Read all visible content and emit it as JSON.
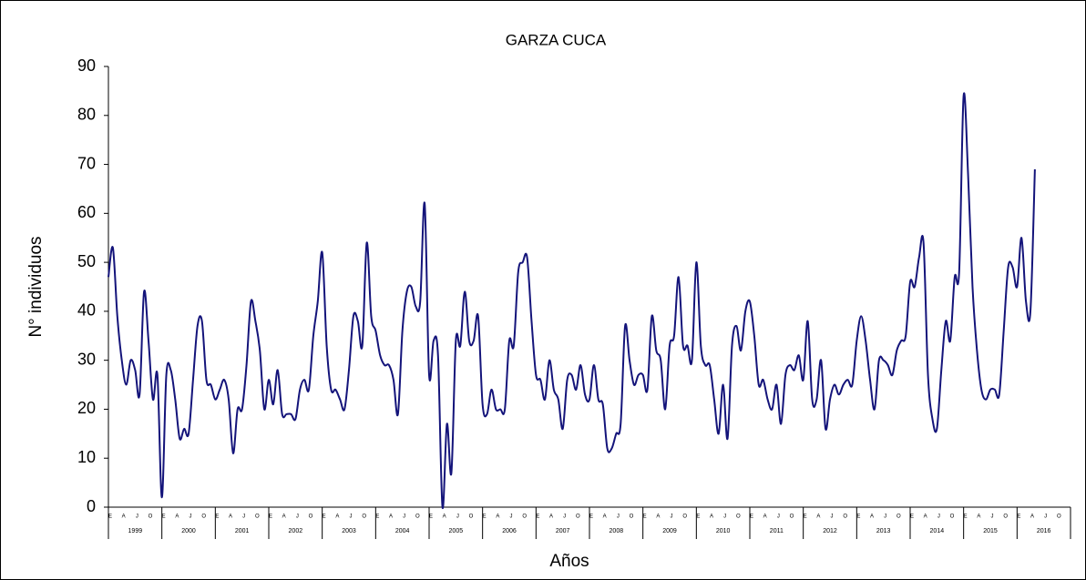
{
  "chart_data": {
    "type": "line",
    "title": "GARZA CUCA",
    "y_label": "N° individuos",
    "x_label": "Años",
    "categories": [
      "E",
      null,
      null,
      "A",
      null,
      null,
      "J",
      null,
      null,
      "O",
      null,
      null,
      "E",
      null,
      null,
      "A",
      null,
      null,
      "J",
      null,
      null,
      "O",
      null,
      null,
      "E",
      null,
      null,
      "A",
      null,
      null,
      "J",
      null,
      null,
      "O",
      null,
      null,
      "E",
      null,
      null,
      "A",
      null,
      null,
      "J",
      null,
      null,
      "O",
      null,
      null,
      "E",
      null,
      null,
      "A",
      null,
      null,
      "J",
      null,
      null,
      "O",
      null,
      null,
      "E",
      null,
      null,
      "A",
      null,
      null,
      "J",
      null,
      null,
      "O",
      null,
      null,
      "E",
      null,
      null,
      "A",
      null,
      null,
      "J",
      null,
      null,
      "O",
      null,
      null,
      "E",
      null,
      null,
      "A",
      null,
      null,
      "J",
      null,
      null,
      "O",
      null,
      null,
      "E",
      null,
      null,
      "A",
      null,
      null,
      "J",
      null,
      null,
      "O",
      null,
      null,
      "E",
      null,
      null,
      "A",
      null,
      null,
      "J",
      null,
      null,
      "O",
      null,
      null,
      "E",
      null,
      null,
      "A",
      null,
      null,
      "J",
      null,
      null,
      "O",
      null,
      null,
      "E",
      null,
      null,
      "A",
      null,
      null,
      "J",
      null,
      null,
      "O",
      null,
      null,
      "E",
      null,
      null,
      "A",
      null,
      null,
      "J",
      null,
      null,
      "O",
      null,
      null,
      "E",
      null,
      null,
      "A",
      null,
      null,
      "J",
      null,
      null,
      "O",
      null,
      null,
      "E",
      null,
      null,
      "A",
      null,
      null,
      "J",
      null,
      null,
      "O",
      null,
      null,
      "E",
      null,
      null,
      "A",
      null,
      null,
      "J",
      null,
      null,
      "O",
      null,
      null,
      "E",
      null,
      null,
      "A",
      null,
      null,
      "J",
      null,
      null,
      "O",
      null,
      null,
      "E",
      null,
      null,
      "A",
      null,
      null,
      "J",
      null,
      null,
      "O",
      null,
      null
    ],
    "x_groups": [
      "1999",
      "2000",
      "2001",
      "2002",
      "2003",
      "2004",
      "2005",
      "2006",
      "2007",
      "2008",
      "2009",
      "2010",
      "2011",
      "2012",
      "2013",
      "2014",
      "2015",
      "2016"
    ],
    "series": [
      {
        "name": "GARZA CUCA",
        "color": "#14147a",
        "values": [
          47,
          53,
          39,
          30,
          25,
          30,
          28,
          23,
          44,
          34,
          22,
          27,
          2,
          27,
          28,
          22,
          14,
          16,
          15,
          26,
          37,
          38,
          26,
          25,
          22,
          24,
          26,
          22,
          11,
          20,
          20,
          29,
          42,
          38,
          32,
          20,
          26,
          21,
          28,
          19,
          19,
          19,
          18,
          24,
          26,
          24,
          35,
          42,
          52,
          33,
          24,
          24,
          22,
          20,
          28,
          39,
          38,
          33,
          54,
          39,
          36,
          31,
          29,
          29,
          26,
          19,
          36,
          44,
          45,
          41,
          42,
          62,
          27,
          34,
          31,
          0,
          17,
          7,
          34,
          33,
          44,
          34,
          34,
          39,
          21,
          19,
          24,
          20,
          20,
          20,
          34,
          33,
          48,
          50,
          51,
          38,
          27,
          26,
          22,
          30,
          24,
          22,
          16,
          26,
          27,
          24,
          29,
          23,
          22,
          29,
          22,
          21,
          12,
          12,
          15,
          17,
          37,
          30,
          25,
          27,
          27,
          24,
          39,
          32,
          30,
          20,
          33,
          35,
          47,
          33,
          33,
          30,
          50,
          33,
          29,
          29,
          22,
          15,
          25,
          14,
          33,
          37,
          32,
          40,
          42,
          35,
          25,
          26,
          22,
          20,
          25,
          17,
          27,
          29,
          28,
          31,
          26,
          38,
          22,
          22,
          30,
          16,
          22,
          25,
          23,
          25,
          26,
          25,
          34,
          39,
          34,
          26,
          20,
          30,
          30,
          29,
          27,
          32,
          34,
          35,
          46,
          45,
          51,
          54,
          27,
          18,
          16,
          28,
          38,
          34,
          47,
          48,
          84,
          68,
          45,
          32,
          24,
          22,
          24,
          24,
          23,
          36,
          49,
          49,
          45,
          55,
          42,
          40,
          69,
          null,
          null,
          null,
          null,
          null,
          null,
          null
        ]
      }
    ],
    "ylim": [
      0,
      90
    ],
    "yticks": [
      0,
      10,
      20,
      30,
      40,
      50,
      60,
      70,
      80,
      90
    ]
  }
}
